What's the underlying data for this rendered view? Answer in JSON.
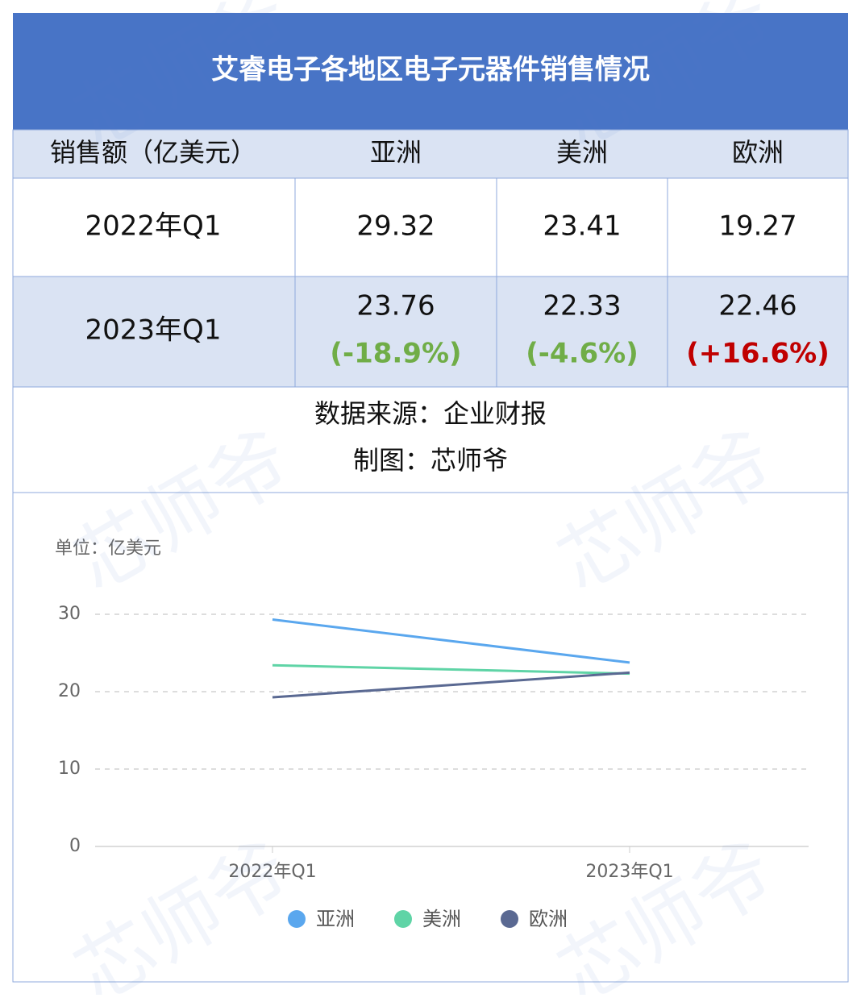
{
  "title": "艾睿电子各地区电子元器件销售情况",
  "table": {
    "header": [
      "销售额（亿美元）",
      "亚洲",
      "美洲",
      "欧洲"
    ],
    "rows": [
      {
        "label": "2022年Q1",
        "values": [
          "29.32",
          "23.41",
          "19.27"
        ]
      },
      {
        "label": "2023年Q1",
        "values": [
          "23.76",
          "22.33",
          "22.46"
        ],
        "changes": [
          "(-18.9%)",
          "(-4.6%)",
          "(+16.6%)"
        ],
        "change_colors": [
          "#70ad47",
          "#70ad47",
          "#c00000"
        ]
      }
    ]
  },
  "source": "数据来源：企业财报",
  "credit": "制图：芯师爷",
  "watermark": "芯师爷",
  "chart_data": {
    "type": "line",
    "y_label": "单位：亿美元",
    "categories": [
      "2022年Q1",
      "2023年Q1"
    ],
    "series": [
      {
        "name": "亚洲",
        "color": "#5aa7ee",
        "values": [
          29.32,
          23.76
        ]
      },
      {
        "name": "美洲",
        "color": "#5fd4a6",
        "values": [
          23.41,
          22.33
        ]
      },
      {
        "name": "欧洲",
        "color": "#5a6992",
        "values": [
          19.27,
          22.46
        ]
      }
    ],
    "ylim": [
      0,
      30
    ],
    "yticks": [
      0,
      10,
      20,
      30
    ],
    "grid": true,
    "legend": "bottom"
  }
}
